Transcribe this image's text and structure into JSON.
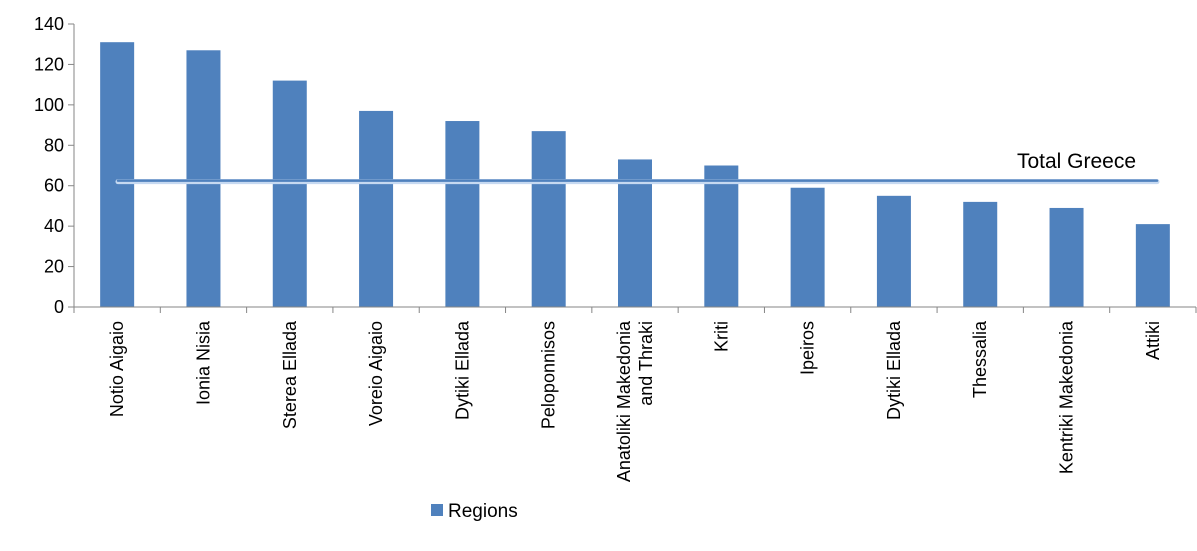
{
  "chart_data": {
    "type": "bar",
    "categories": [
      [
        "Notio Aigaio"
      ],
      [
        "Ionia Nisia"
      ],
      [
        "Sterea Ellada"
      ],
      [
        "Voreio Aigaio"
      ],
      [
        "Dytiki Ellada"
      ],
      [
        "Peloponnisos"
      ],
      [
        "Anatoliki Makedonia",
        "and Thraki"
      ],
      [
        "Kriti"
      ],
      [
        "Ipeiros"
      ],
      [
        "Dytiki Ellada"
      ],
      [
        "Thessalia"
      ],
      [
        "Kentriki Makedonia"
      ],
      [
        "Attiki"
      ]
    ],
    "series": [
      {
        "name": "Regions",
        "values": [
          131,
          127,
          112,
          97,
          92,
          87,
          73,
          70,
          59,
          55,
          52,
          49,
          41
        ],
        "color": "#4f81bd"
      }
    ],
    "reference_line": {
      "label": "Total Greece",
      "value": 62,
      "color": "#4f81bd"
    },
    "ylim": [
      0,
      140
    ],
    "yticks": [
      0,
      20,
      40,
      60,
      80,
      100,
      120,
      140
    ],
    "grid": false,
    "legend": "bottom",
    "title": "",
    "xlabel": "",
    "ylabel": ""
  }
}
